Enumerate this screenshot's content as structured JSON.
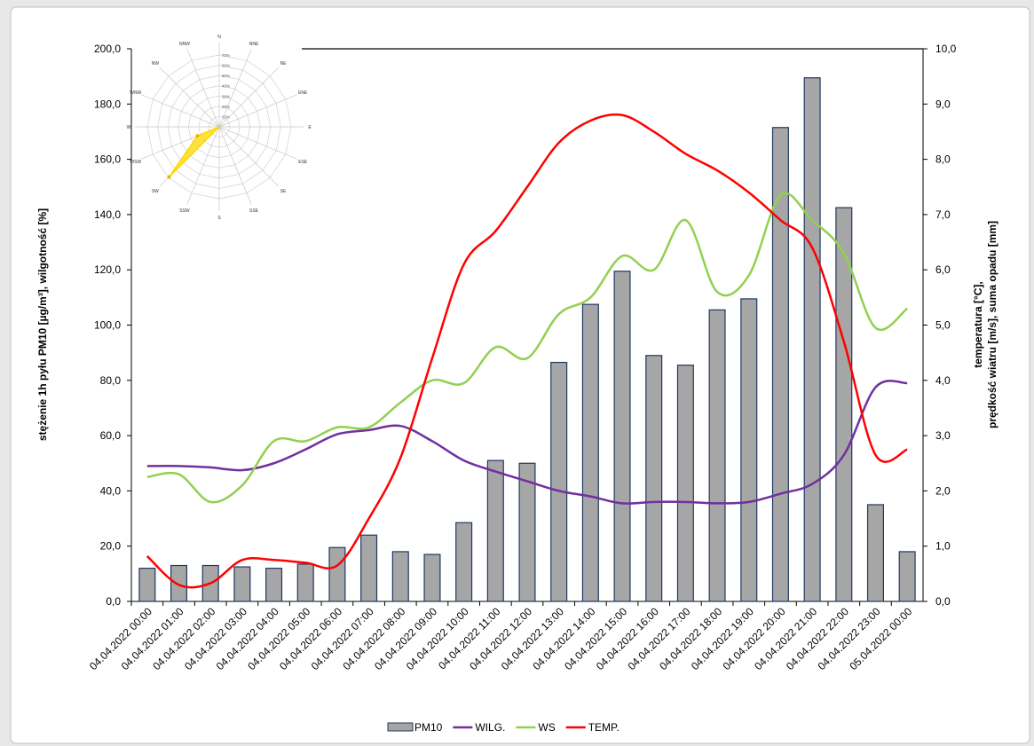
{
  "chart_data": {
    "type": "bar-line",
    "categories": [
      "04.04.2022 00:00",
      "04.04.2022 01:00",
      "04.04.2022 02:00",
      "04.04.2022 03:00",
      "04.04.2022 04:00",
      "04.04.2022 05:00",
      "04.04.2022 06:00",
      "04.04.2022 07:00",
      "04.04.2022 08:00",
      "04.04.2022 09:00",
      "04.04.2022 10:00",
      "04.04.2022 11:00",
      "04.04.2022 12:00",
      "04.04.2022 13:00",
      "04.04.2022 14:00",
      "04.04.2022 15:00",
      "04.04.2022 16:00",
      "04.04.2022 17:00",
      "04.04.2022 18:00",
      "04.04.2022 19:00",
      "04.04.2022 20:00",
      "04.04.2022 21:00",
      "04.04.2022 22:00",
      "04.04.2022 23:00",
      "05.04.2022 00:00"
    ],
    "series": [
      {
        "name": "PM10",
        "type": "bar",
        "color": "#a6a6a6",
        "edge": "#1f3864",
        "values": [
          12,
          13,
          13,
          12.5,
          12,
          13.5,
          19.5,
          24,
          18,
          17,
          28.5,
          51,
          50,
          86.5,
          107.5,
          119.5,
          89,
          85.5,
          105.5,
          109.5,
          171.5,
          189.5,
          142.5,
          35,
          18
        ]
      },
      {
        "name": "WILG.",
        "type": "line",
        "color": "#7030a0",
        "values": [
          49,
          49,
          48.5,
          47.5,
          50,
          55,
          60.5,
          62,
          63.5,
          58,
          51,
          47,
          43.5,
          40,
          38,
          35.5,
          36,
          36,
          35.5,
          36,
          39,
          42.5,
          53,
          77.5,
          79
        ]
      },
      {
        "name": "WS",
        "type": "line",
        "axis": "y2",
        "color": "#92d050",
        "values": [
          2.25,
          2.3,
          1.8,
          2.1,
          2.9,
          2.9,
          3.15,
          3.15,
          3.6,
          4.0,
          3.95,
          4.6,
          4.4,
          5.2,
          5.5,
          6.25,
          6.0,
          6.9,
          5.6,
          5.9,
          7.35,
          6.9,
          6.3,
          4.95,
          5.3
        ]
      },
      {
        "name": "TEMP.",
        "type": "line",
        "axis": "y2",
        "color": "#ff0000",
        "values": [
          0.82,
          0.3,
          0.33,
          0.75,
          0.75,
          0.7,
          0.65,
          1.5,
          2.6,
          4.4,
          6.1,
          6.7,
          7.5,
          8.3,
          8.7,
          8.8,
          8.5,
          8.1,
          7.8,
          7.4,
          6.9,
          6.4,
          4.7,
          2.65,
          2.75
        ]
      }
    ],
    "ylabel": "stężenie 1h  pyłu PM10  [µg/m³], wilgotność [%]",
    "y2label": [
      "temperatura [°C],",
      "prędkość wiatru [m/s], suma opadu [mm]"
    ],
    "ylim": [
      0,
      200
    ],
    "yticks": [
      {
        "value": 0,
        "label": "0,0"
      },
      {
        "value": 20,
        "label": "20,0"
      },
      {
        "value": 40,
        "label": "40,0"
      },
      {
        "value": 60,
        "label": "60,0"
      },
      {
        "value": 80,
        "label": "80,0"
      },
      {
        "value": 100,
        "label": "100,0"
      },
      {
        "value": 120,
        "label": "120,0"
      },
      {
        "value": 140,
        "label": "140,0"
      },
      {
        "value": 160,
        "label": "160,0"
      },
      {
        "value": 180,
        "label": "180,0"
      },
      {
        "value": 200,
        "label": "200,0"
      }
    ],
    "y2lim": [
      0,
      10
    ],
    "y2ticks": [
      {
        "value": 0,
        "label": "0,0"
      },
      {
        "value": 1,
        "label": "1,0"
      },
      {
        "value": 2,
        "label": "2,0"
      },
      {
        "value": 3,
        "label": "3,0"
      },
      {
        "value": 4,
        "label": "4,0"
      },
      {
        "value": 5,
        "label": "5,0"
      },
      {
        "value": 6,
        "label": "6,0"
      },
      {
        "value": 7,
        "label": "7,0"
      },
      {
        "value": 8,
        "label": "8,0"
      },
      {
        "value": 9,
        "label": "9,0"
      },
      {
        "value": 10,
        "label": "10,0"
      }
    ],
    "legend": "bottom",
    "rose": {
      "color": "#ffd700",
      "directions": [
        "N",
        "NNE",
        "NE",
        "ENE",
        "E",
        "ESE",
        "SE",
        "SSE",
        "S",
        "SSW",
        "SW",
        "WSW",
        "W",
        "WNW",
        "NW",
        "NNW"
      ],
      "values": [
        0,
        0,
        0,
        0,
        0,
        0,
        0,
        0,
        0,
        0,
        69,
        23,
        0,
        0,
        0,
        0
      ],
      "rlim": [
        0,
        70
      ],
      "rticks": [
        {
          "value": 10,
          "label": "10%"
        },
        {
          "value": 20,
          "label": "20%"
        },
        {
          "value": 30,
          "label": "30%"
        },
        {
          "value": 40,
          "label": "40%"
        },
        {
          "value": 50,
          "label": "50%"
        },
        {
          "value": 60,
          "label": "60%"
        },
        {
          "value": 70,
          "label": "70%"
        }
      ]
    }
  }
}
